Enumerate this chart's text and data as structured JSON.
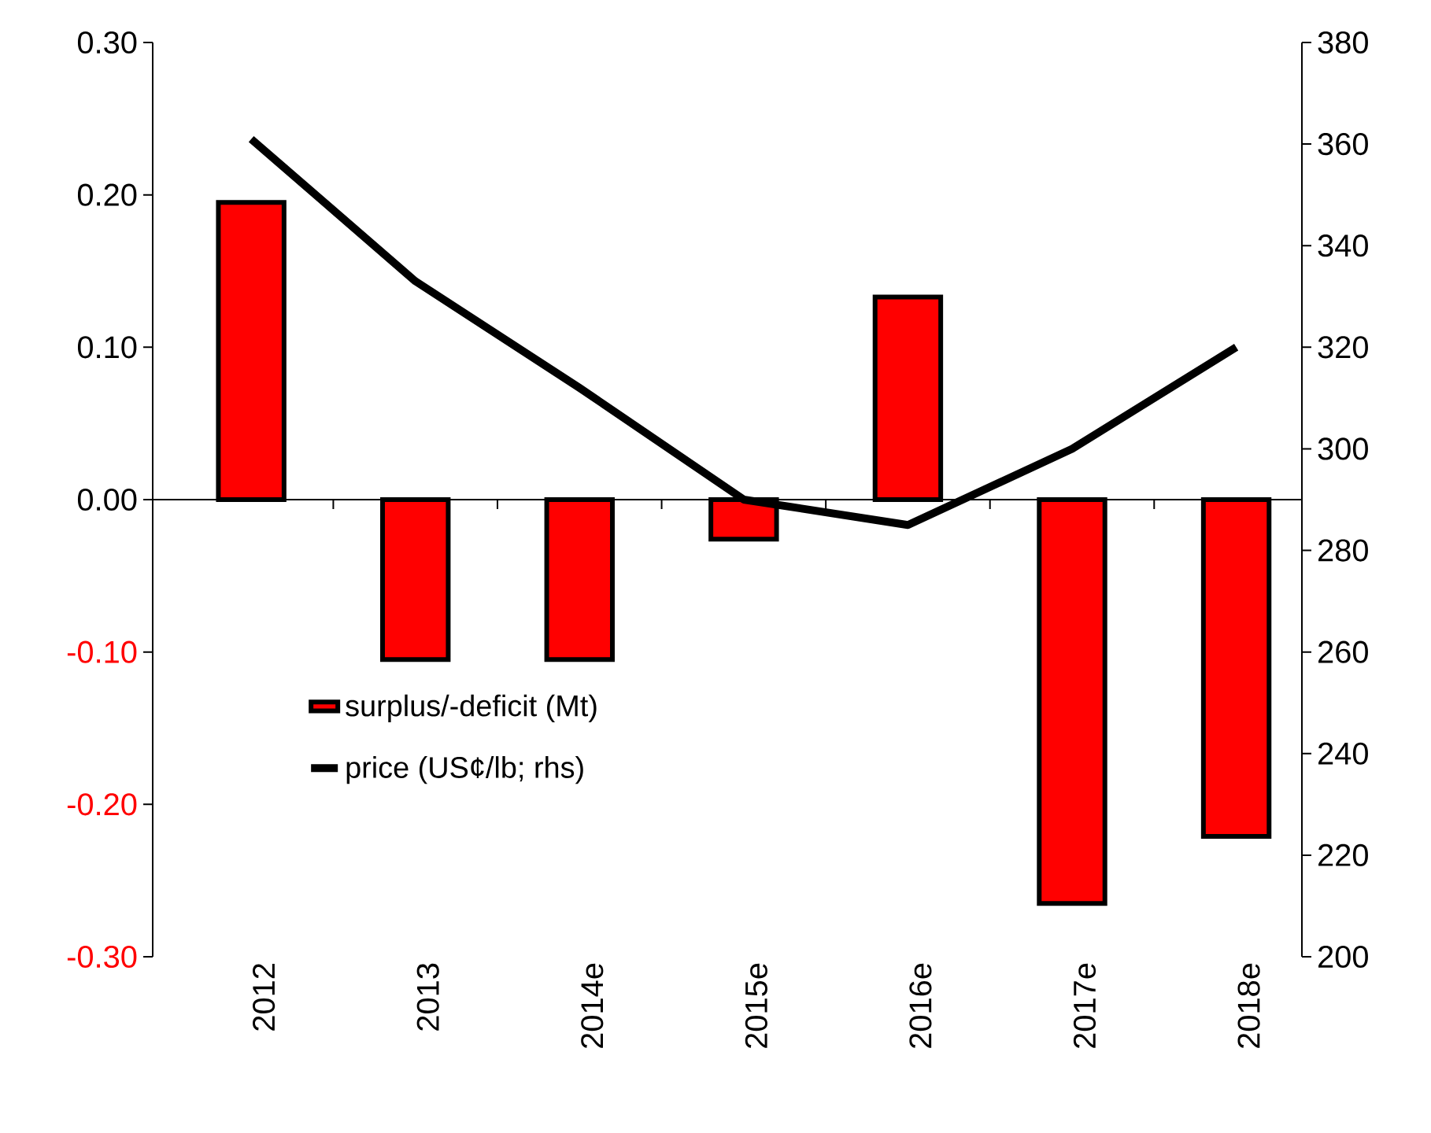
{
  "chart_data": {
    "type": "bar",
    "categories": [
      "2012",
      "2013",
      "2014e",
      "2015e",
      "2016e",
      "2017e",
      "2018e"
    ],
    "series": [
      {
        "name": "surplus/-deficit (Mt)",
        "color": "#ff0000",
        "values": [
          0.195,
          -0.105,
          -0.105,
          -0.026,
          0.133,
          -0.265,
          -0.221
        ]
      },
      {
        "name": "price (US¢/lb; rhs)",
        "type": "line",
        "axis": "y2",
        "color": "#000000",
        "values": [
          361,
          333,
          312,
          290,
          285,
          300,
          320
        ]
      }
    ],
    "ylim": [
      -0.3,
      0.3
    ],
    "yticks": [
      {
        "value": -0.3,
        "label": "-0.30"
      },
      {
        "value": -0.2,
        "label": "-0.20"
      },
      {
        "value": -0.1,
        "label": "-0.10"
      },
      {
        "value": 0,
        "label": "0.00"
      },
      {
        "value": 0.1,
        "label": "0.10"
      },
      {
        "value": 0.2,
        "label": "0.20"
      },
      {
        "value": 0.3,
        "label": "0.30"
      }
    ],
    "y2lim": [
      200,
      380
    ],
    "y2ticks": [
      200,
      220,
      240,
      260,
      280,
      300,
      320,
      340,
      360,
      380
    ],
    "legend": "center left"
  }
}
